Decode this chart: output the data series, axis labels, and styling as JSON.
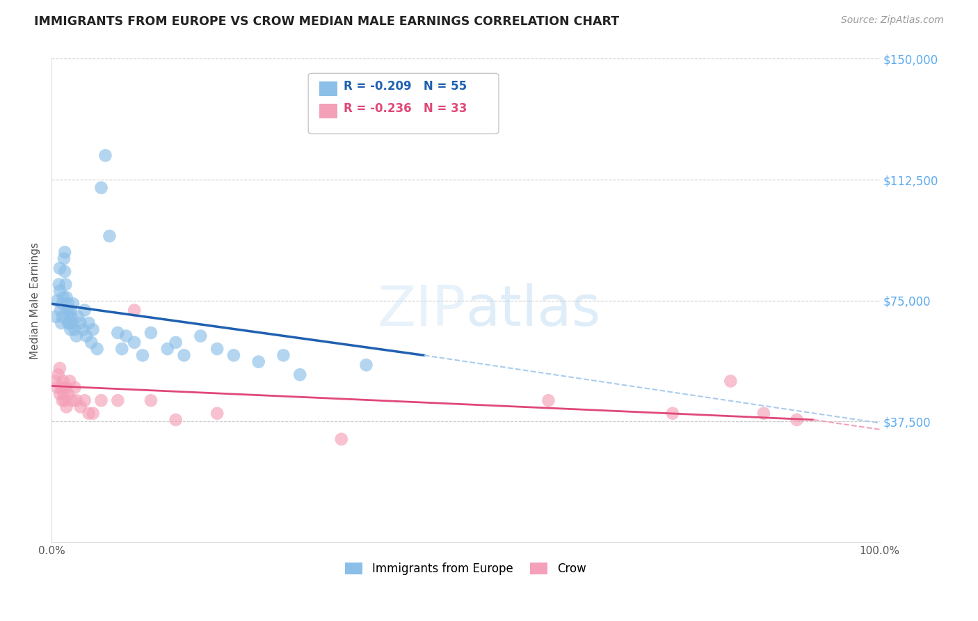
{
  "title": "IMMIGRANTS FROM EUROPE VS CROW MEDIAN MALE EARNINGS CORRELATION CHART",
  "source": "Source: ZipAtlas.com",
  "ylabel": "Median Male Earnings",
  "xlim": [
    0,
    1.0
  ],
  "ylim": [
    0,
    150000
  ],
  "ytick_labels": [
    "$37,500",
    "$75,000",
    "$112,500",
    "$150,000"
  ],
  "ytick_values": [
    37500,
    75000,
    112500,
    150000
  ],
  "blue_R": "-0.209",
  "blue_N": "55",
  "pink_R": "-0.236",
  "pink_N": "33",
  "blue_color": "#8bbfe8",
  "pink_color": "#f4a0b8",
  "blue_line_color": "#2060b0",
  "pink_line_color": "#e04878",
  "dashed_line_color": "#aaccee",
  "legend_label_blue": "Immigrants from Europe",
  "legend_label_pink": "Crow",
  "blue_line_x0": 0.0,
  "blue_line_y0": 74000,
  "blue_line_x1": 0.45,
  "blue_line_y1": 58000,
  "blue_line_x2": 1.0,
  "blue_line_y2": 37000,
  "pink_line_x0": 0.0,
  "pink_line_y0": 48500,
  "pink_line_x1": 0.92,
  "pink_line_y1": 38000,
  "blue_points_x": [
    0.005,
    0.007,
    0.009,
    0.01,
    0.01,
    0.011,
    0.012,
    0.013,
    0.013,
    0.014,
    0.015,
    0.016,
    0.016,
    0.017,
    0.018,
    0.019,
    0.02,
    0.02,
    0.021,
    0.022,
    0.023,
    0.023,
    0.024,
    0.025,
    0.026,
    0.028,
    0.03,
    0.032,
    0.035,
    0.038,
    0.04,
    0.042,
    0.045,
    0.048,
    0.05,
    0.055,
    0.06,
    0.065,
    0.07,
    0.08,
    0.085,
    0.09,
    0.1,
    0.11,
    0.12,
    0.14,
    0.15,
    0.16,
    0.18,
    0.2,
    0.22,
    0.25,
    0.28,
    0.3,
    0.38
  ],
  "blue_points_y": [
    70000,
    75000,
    80000,
    85000,
    78000,
    72000,
    68000,
    74000,
    70000,
    76000,
    88000,
    90000,
    84000,
    80000,
    76000,
    72000,
    68000,
    74000,
    70000,
    68000,
    72000,
    66000,
    70000,
    68000,
    74000,
    66000,
    64000,
    70000,
    68000,
    66000,
    72000,
    64000,
    68000,
    62000,
    66000,
    60000,
    110000,
    120000,
    95000,
    65000,
    60000,
    64000,
    62000,
    58000,
    65000,
    60000,
    62000,
    58000,
    64000,
    60000,
    58000,
    56000,
    58000,
    52000,
    55000
  ],
  "pink_points_x": [
    0.005,
    0.007,
    0.008,
    0.01,
    0.01,
    0.012,
    0.013,
    0.014,
    0.015,
    0.016,
    0.017,
    0.018,
    0.02,
    0.022,
    0.025,
    0.028,
    0.03,
    0.035,
    0.04,
    0.045,
    0.05,
    0.06,
    0.08,
    0.1,
    0.12,
    0.15,
    0.2,
    0.35,
    0.6,
    0.75,
    0.82,
    0.86,
    0.9
  ],
  "pink_points_y": [
    50000,
    48000,
    52000,
    46000,
    54000,
    48000,
    44000,
    50000,
    46000,
    44000,
    48000,
    42000,
    46000,
    50000,
    44000,
    48000,
    44000,
    42000,
    44000,
    40000,
    40000,
    44000,
    44000,
    72000,
    44000,
    38000,
    40000,
    32000,
    44000,
    40000,
    50000,
    40000,
    38000
  ],
  "background_color": "#ffffff",
  "grid_color": "#cccccc",
  "title_color": "#222222",
  "axis_label_color": "#555555",
  "ytick_color": "#5baaf0",
  "source_color": "#999999"
}
